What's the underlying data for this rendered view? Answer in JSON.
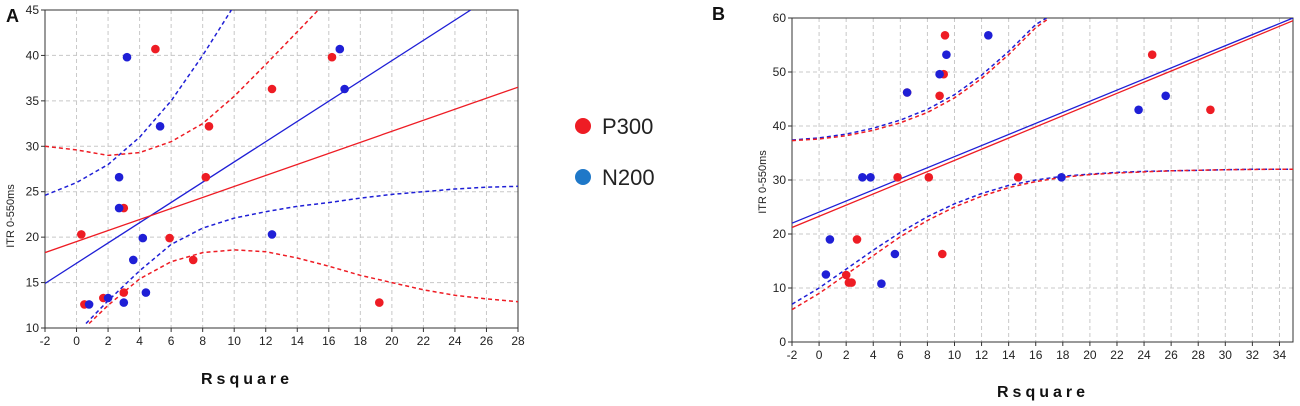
{
  "colors": {
    "p300": "#ee1c24",
    "n200": "#1f1fd6",
    "grid": "#c8c8c8",
    "axis": "#333333"
  },
  "legend": [
    {
      "name": "P300",
      "color": "#ee1c24"
    },
    {
      "name": "N200",
      "color": "#1f78c8"
    }
  ],
  "chart_data": [
    {
      "panel": "A",
      "type": "scatter",
      "xlabel": "Rsquare",
      "ylabel": "ITR 0-550ms",
      "xlim": [
        -2,
        28
      ],
      "ylim": [
        10,
        45
      ],
      "xticks": [
        -2,
        0,
        2,
        4,
        6,
        8,
        10,
        12,
        14,
        16,
        18,
        20,
        22,
        24,
        26,
        28
      ],
      "yticks": [
        10,
        15,
        20,
        25,
        30,
        35,
        40,
        45
      ],
      "grid": true,
      "series": [
        {
          "name": "P300",
          "color": "#ee1c24",
          "points": [
            [
              0.3,
              20.3
            ],
            [
              0.5,
              12.6
            ],
            [
              1.7,
              13.3
            ],
            [
              3.0,
              13.9
            ],
            [
              3.0,
              23.2
            ],
            [
              5.0,
              40.7
            ],
            [
              5.9,
              19.9
            ],
            [
              7.4,
              17.5
            ],
            [
              8.2,
              26.6
            ],
            [
              8.4,
              32.2
            ],
            [
              12.4,
              36.3
            ],
            [
              16.2,
              39.8
            ],
            [
              19.2,
              12.8
            ]
          ],
          "fit": [
            [
              -2,
              18.3
            ],
            [
              28,
              36.5
            ]
          ],
          "ci_upper": [
            [
              -2,
              30.0
            ],
            [
              0,
              29.6
            ],
            [
              2,
              29.0
            ],
            [
              4,
              29.3
            ],
            [
              6,
              30.5
            ],
            [
              8,
              32.5
            ],
            [
              10,
              35.5
            ],
            [
              12,
              39.0
            ],
            [
              14,
              42.6
            ],
            [
              16,
              46.2
            ]
          ],
          "ci_lower": [
            [
              0.8,
              10.5
            ],
            [
              2,
              12.5
            ],
            [
              4,
              15.4
            ],
            [
              6,
              17.3
            ],
            [
              8,
              18.3
            ],
            [
              10,
              18.6
            ],
            [
              12,
              18.4
            ],
            [
              14,
              17.7
            ],
            [
              16,
              16.8
            ],
            [
              18,
              15.8
            ],
            [
              20,
              15.0
            ],
            [
              22,
              14.2
            ],
            [
              24,
              13.6
            ],
            [
              26,
              13.2
            ],
            [
              28,
              12.9
            ]
          ]
        },
        {
          "name": "N200",
          "color": "#1f1fd6",
          "points": [
            [
              0.8,
              12.6
            ],
            [
              2.0,
              13.3
            ],
            [
              2.7,
              26.6
            ],
            [
              2.7,
              23.2
            ],
            [
              3.0,
              12.8
            ],
            [
              3.2,
              39.8
            ],
            [
              3.6,
              17.5
            ],
            [
              4.2,
              19.9
            ],
            [
              4.4,
              13.9
            ],
            [
              5.3,
              32.2
            ],
            [
              12.4,
              20.3
            ],
            [
              16.7,
              40.7
            ],
            [
              17.0,
              36.3
            ]
          ],
          "fit": [
            [
              -2,
              14.9
            ],
            [
              25,
              45
            ]
          ],
          "ci_upper": [
            [
              -2,
              24.6
            ],
            [
              0,
              26.0
            ],
            [
              2,
              28.0
            ],
            [
              4,
              31.0
            ],
            [
              6,
              35.0
            ],
            [
              8,
              40.0
            ],
            [
              10,
              45.5
            ]
          ],
          "ci_lower": [
            [
              0.6,
              10.5
            ],
            [
              2,
              13.0
            ],
            [
              4,
              16.3
            ],
            [
              6,
              19.2
            ],
            [
              8,
              21.0
            ],
            [
              10,
              22.1
            ],
            [
              12,
              22.8
            ],
            [
              14,
              23.4
            ],
            [
              16,
              23.8
            ],
            [
              18,
              24.3
            ],
            [
              20,
              24.7
            ],
            [
              22,
              25.0
            ],
            [
              24,
              25.3
            ],
            [
              26,
              25.5
            ],
            [
              28,
              25.6
            ]
          ]
        }
      ]
    },
    {
      "panel": "B",
      "type": "scatter",
      "xlabel": "Rsquare",
      "ylabel": "ITR 0-550ms",
      "xlim": [
        -2,
        35
      ],
      "ylim": [
        0,
        60
      ],
      "xticks": [
        -2,
        0,
        2,
        4,
        6,
        8,
        10,
        12,
        14,
        16,
        18,
        20,
        22,
        24,
        26,
        28,
        30,
        32,
        34
      ],
      "yticks": [
        0,
        10,
        20,
        30,
        40,
        50,
        60
      ],
      "grid": true,
      "series": [
        {
          "name": "P300",
          "color": "#ee1c24",
          "points": [
            [
              2.0,
              12.4
            ],
            [
              2.2,
              11.0
            ],
            [
              2.4,
              11.0
            ],
            [
              2.8,
              19.0
            ],
            [
              5.8,
              30.5
            ],
            [
              6.5,
              46.2
            ],
            [
              8.1,
              30.5
            ],
            [
              8.9,
              45.6
            ],
            [
              9.1,
              16.3
            ],
            [
              9.2,
              49.6
            ],
            [
              9.3,
              56.8
            ],
            [
              14.7,
              30.5
            ],
            [
              24.6,
              53.2
            ],
            [
              28.9,
              43.0
            ]
          ],
          "fit": [
            [
              -2,
              21.2
            ],
            [
              35,
              59.5
            ]
          ],
          "ci_upper": [
            [
              -2,
              37.3
            ],
            [
              0,
              37.6
            ],
            [
              2,
              38.2
            ],
            [
              4,
              39.2
            ],
            [
              6,
              40.6
            ],
            [
              8,
              42.5
            ],
            [
              10,
              45.2
            ],
            [
              12,
              48.8
            ],
            [
              14,
              53.2
            ],
            [
              16,
              58.2
            ],
            [
              17,
              60.0
            ]
          ],
          "ci_lower": [
            [
              -2,
              6.0
            ],
            [
              0,
              9.0
            ],
            [
              2,
              12.5
            ],
            [
              4,
              16.0
            ],
            [
              6,
              19.5
            ],
            [
              8,
              22.5
            ],
            [
              10,
              25.0
            ],
            [
              12,
              27.0
            ],
            [
              14,
              28.6
            ],
            [
              16,
              29.7
            ],
            [
              18,
              30.5
            ],
            [
              20,
              31.0
            ],
            [
              22,
              31.3
            ],
            [
              24,
              31.5
            ],
            [
              26,
              31.7
            ],
            [
              28,
              31.8
            ],
            [
              30,
              31.9
            ],
            [
              32,
              31.95
            ],
            [
              34,
              32.0
            ],
            [
              35,
              32.0
            ]
          ]
        },
        {
          "name": "N200",
          "color": "#1f1fd6",
          "points": [
            [
              0.5,
              12.5
            ],
            [
              0.8,
              19.0
            ],
            [
              3.2,
              30.5
            ],
            [
              3.8,
              30.5
            ],
            [
              4.6,
              10.8
            ],
            [
              5.6,
              16.3
            ],
            [
              6.5,
              46.2
            ],
            [
              8.9,
              49.6
            ],
            [
              9.4,
              53.2
            ],
            [
              12.5,
              56.8
            ],
            [
              17.9,
              30.5
            ],
            [
              23.6,
              43.0
            ],
            [
              25.6,
              45.6
            ]
          ],
          "fit": [
            [
              -2,
              22.0
            ],
            [
              35,
              60.0
            ]
          ],
          "ci_upper": [
            [
              -2,
              37.4
            ],
            [
              0,
              37.8
            ],
            [
              2,
              38.5
            ],
            [
              4,
              39.6
            ],
            [
              6,
              41.1
            ],
            [
              8,
              43.1
            ],
            [
              10,
              45.8
            ],
            [
              12,
              49.4
            ],
            [
              14,
              53.8
            ],
            [
              16,
              58.8
            ],
            [
              16.8,
              60.0
            ]
          ],
          "ci_lower": [
            [
              -2,
              7.0
            ],
            [
              0,
              10.0
            ],
            [
              2,
              13.5
            ],
            [
              4,
              17.0
            ],
            [
              6,
              20.3
            ],
            [
              8,
              23.2
            ],
            [
              10,
              25.6
            ],
            [
              12,
              27.5
            ],
            [
              14,
              29.0
            ],
            [
              16,
              30.0
            ],
            [
              18,
              30.7
            ],
            [
              20,
              31.1
            ],
            [
              22,
              31.4
            ],
            [
              24,
              31.6
            ],
            [
              26,
              31.7
            ],
            [
              28,
              31.8
            ],
            [
              30,
              31.9
            ],
            [
              32,
              32.0
            ],
            [
              34,
              32.0
            ],
            [
              35,
              32.0
            ]
          ]
        }
      ]
    }
  ]
}
